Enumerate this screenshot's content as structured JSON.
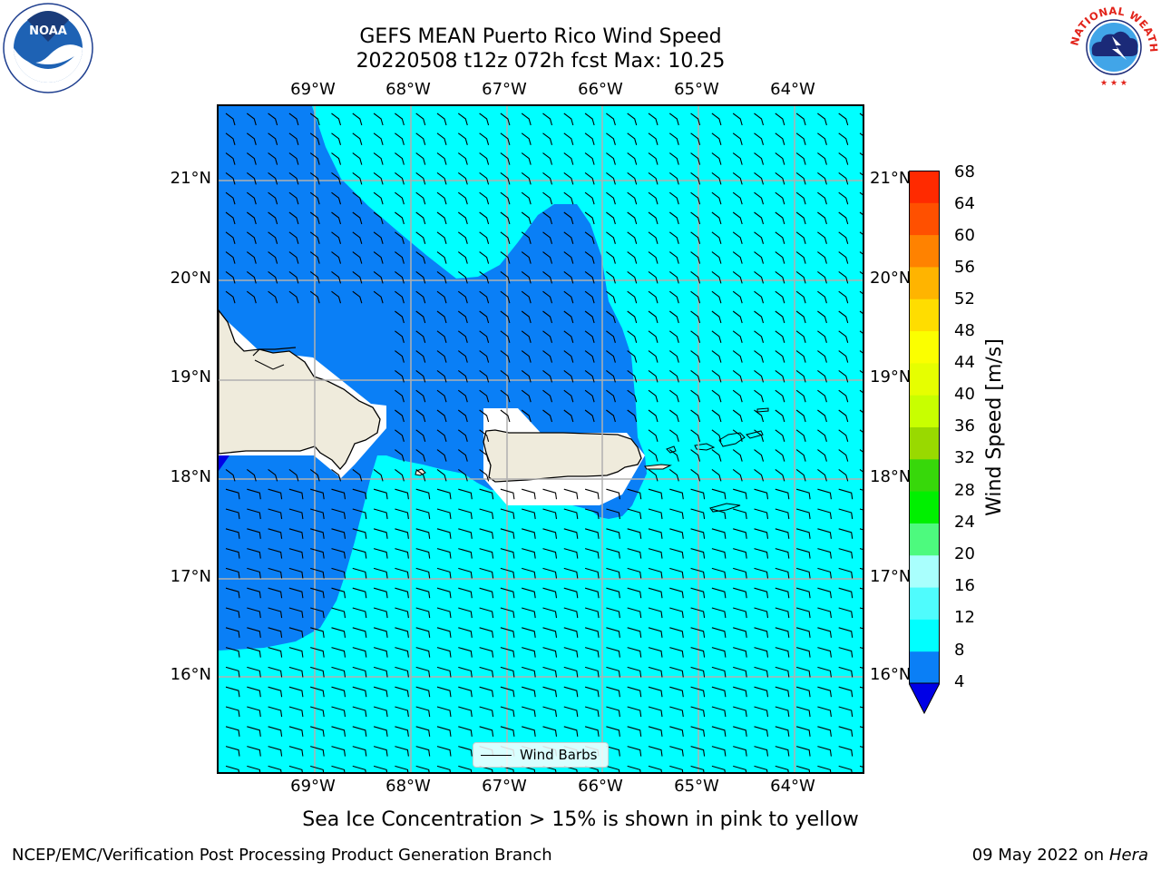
{
  "title": {
    "line1": "GEFS MEAN Puerto Rico Wind Speed",
    "line2": "20220508 t12z 072h fcst   Max: 10.25"
  },
  "map": {
    "lon_labels": [
      "69°W",
      "68°W",
      "67°W",
      "66°W",
      "65°W",
      "64°W"
    ],
    "lat_labels": [
      "21°N",
      "20°N",
      "19°N",
      "18°N",
      "17°N",
      "16°N"
    ],
    "lon_range": [
      -70.0,
      -63.25
    ],
    "lat_range": [
      15.05,
      21.75
    ],
    "gridlines": true
  },
  "legend": {
    "label": "Wind Barbs"
  },
  "colorbar": {
    "title": "Wind Speed [m/s]",
    "ticks": [
      "68",
      "64",
      "60",
      "56",
      "52",
      "48",
      "44",
      "40",
      "36",
      "32",
      "28",
      "24",
      "20",
      "16",
      "12",
      "8",
      "4"
    ],
    "colors": [
      "#0018f0",
      "#0a7ff6",
      "#00ffff",
      "#4ffcfd",
      "#a9fffd",
      "#4dfa7e",
      "#00f000",
      "#37d80a",
      "#99d900",
      "#c8ff00",
      "#e6ff00",
      "#fbff00",
      "#ffdd00",
      "#ffb400",
      "#ff8200",
      "#ff5000",
      "#ff2a00",
      "#ff0000"
    ],
    "under_color": "#0000e6"
  },
  "chart_data": {
    "type": "heatmap",
    "title": "GEFS MEAN Puerto Rico Wind Speed",
    "subtitle": "20220508 t12z 072h fcst   Max: 10.25",
    "units": "m/s",
    "max_value": 10.25,
    "levels": [
      4,
      8,
      12,
      16,
      20,
      24,
      28,
      32,
      36,
      40,
      44,
      48,
      52,
      56,
      60,
      64,
      68
    ],
    "regions": [
      {
        "range": "4-8",
        "color": "#0a7ff6",
        "area": "western Mona Passage, north of Puerto Rico and south of Hispaniola"
      },
      {
        "range": "8-12",
        "color": "#00ffff",
        "area": "north-east and southern open waters"
      }
    ]
  },
  "notes": {
    "sea_ice": "Sea Ice Concentration > 15% is shown in pink to yellow"
  },
  "footer": {
    "left": "NCEP/EMC/Verification Post Processing Product Generation Branch",
    "date": "09 May 2022 on",
    "machine": "Hera"
  },
  "logos": {
    "noaa_text": "NOAA",
    "nws_text": "NATIONAL WEATHER SERVICE"
  }
}
